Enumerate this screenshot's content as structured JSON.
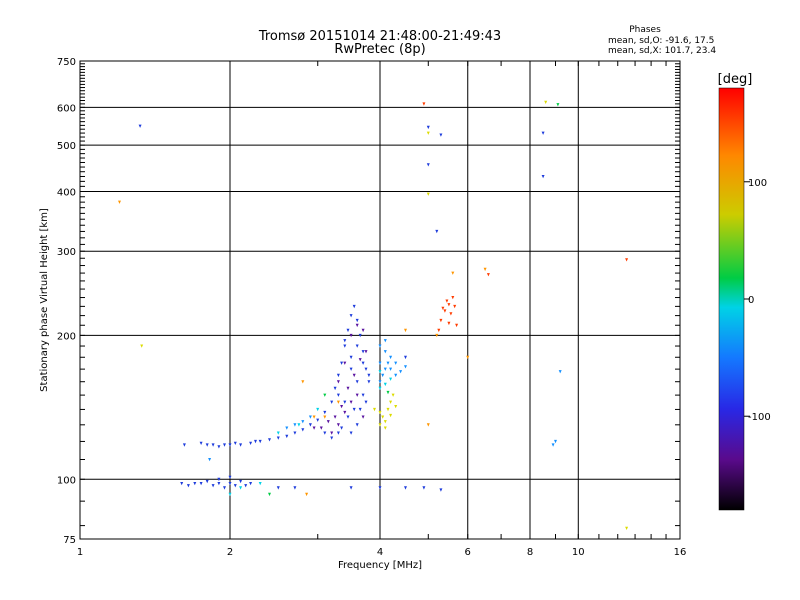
{
  "chart_data": {
    "type": "scatter",
    "title": "Tromsø 20151014 21:48:00-21:49:43",
    "subtitle": "RwPretec (8p)",
    "xlabel": "Frequency [MHz]",
    "ylabel": "Stationary phase Virtual Height [km]",
    "x_scale": "log",
    "y_scale": "log",
    "xlim": [
      1,
      16
    ],
    "ylim": [
      75,
      750
    ],
    "x_ticks": [
      1,
      2,
      4,
      6,
      8,
      10,
      16
    ],
    "y_ticks": [
      75,
      100,
      200,
      300,
      400,
      500,
      600,
      750
    ],
    "grid": true,
    "phase_info": {
      "heading": "Phases",
      "line_o": "mean, sd,O: -91.6, 17.5",
      "line_x": "mean, sd,X: 101.7, 23.4"
    },
    "colorbar": {
      "unit": "[deg]",
      "ticks": [
        100,
        0,
        -100
      ],
      "range": [
        -180,
        180
      ],
      "stops": [
        "#000000",
        "#5a0a8c",
        "#2828e6",
        "#1478ff",
        "#00d2e6",
        "#00cc44",
        "#cccc00",
        "#ff8800",
        "#ff0000"
      ]
    },
    "series": [
      {
        "color": "#1e3cdc",
        "points": [
          [
            1.6,
            98
          ],
          [
            1.65,
            97
          ],
          [
            1.7,
            98
          ],
          [
            1.8,
            99
          ],
          [
            1.85,
            97
          ],
          [
            1.9,
            98
          ],
          [
            1.95,
            96
          ],
          [
            2.0,
            98
          ],
          [
            2.05,
            97
          ],
          [
            2.1,
            99
          ],
          [
            2.15,
            97
          ],
          [
            2.2,
            98
          ],
          [
            1.62,
            118
          ],
          [
            1.75,
            119
          ],
          [
            1.8,
            118
          ],
          [
            1.85,
            118
          ],
          [
            1.9,
            117
          ],
          [
            1.95,
            118
          ],
          [
            2.0,
            118
          ],
          [
            2.05,
            119
          ],
          [
            2.1,
            118
          ],
          [
            2.2,
            119
          ],
          [
            2.25,
            120
          ],
          [
            2.3,
            120
          ],
          [
            2.4,
            121
          ],
          [
            2.5,
            122
          ],
          [
            2.6,
            123
          ],
          [
            2.7,
            125
          ],
          [
            2.8,
            127
          ],
          [
            2.9,
            130
          ],
          [
            3.0,
            133
          ],
          [
            3.1,
            138
          ],
          [
            3.2,
            145
          ],
          [
            3.25,
            155
          ],
          [
            3.3,
            165
          ],
          [
            3.35,
            175
          ],
          [
            3.4,
            190
          ],
          [
            3.45,
            205
          ],
          [
            3.5,
            220
          ],
          [
            3.55,
            230
          ],
          [
            3.6,
            215
          ],
          [
            3.65,
            200
          ],
          [
            3.7,
            185
          ],
          [
            3.75,
            170
          ],
          [
            3.8,
            160
          ],
          [
            3.3,
            150
          ],
          [
            3.4,
            145
          ],
          [
            3.5,
            170
          ],
          [
            3.6,
            160
          ],
          [
            3.7,
            150
          ],
          [
            3.45,
            135
          ],
          [
            3.55,
            140
          ],
          [
            3.65,
            140
          ],
          [
            3.75,
            145
          ],
          [
            3.35,
            128
          ],
          [
            3.5,
            125
          ],
          [
            3.6,
            130
          ],
          [
            3.1,
            125
          ],
          [
            3.2,
            122
          ],
          [
            3.3,
            125
          ],
          [
            3.4,
            195
          ],
          [
            3.5,
            180
          ],
          [
            3.6,
            190
          ],
          [
            3.7,
            175
          ],
          [
            3.8,
            165
          ],
          [
            1.75,
            98
          ],
          [
            1.9,
            100
          ],
          [
            2.0,
            101
          ],
          [
            3.5,
            96
          ],
          [
            4.0,
            96
          ],
          [
            4.5,
            96
          ],
          [
            4.9,
            96
          ],
          [
            5.3,
            95
          ],
          [
            8.5,
            530
          ],
          [
            8.5,
            430
          ],
          [
            5.0,
            455
          ],
          [
            5.0,
            545
          ],
          [
            5.3,
            525
          ],
          [
            5.2,
            330
          ],
          [
            1.32,
            548
          ],
          [
            2.5,
            96
          ],
          [
            2.7,
            96
          ],
          [
            4.5,
            180
          ]
        ]
      },
      {
        "color": "#5a14a0",
        "points": [
          [
            3.2,
            125
          ],
          [
            3.3,
            130
          ],
          [
            3.4,
            138
          ],
          [
            3.5,
            145
          ],
          [
            3.6,
            150
          ],
          [
            3.7,
            135
          ],
          [
            3.25,
            135
          ],
          [
            3.35,
            142
          ],
          [
            3.45,
            155
          ],
          [
            3.55,
            165
          ],
          [
            3.65,
            178
          ],
          [
            3.75,
            185
          ],
          [
            3.3,
            160
          ],
          [
            3.4,
            175
          ],
          [
            3.5,
            200
          ],
          [
            3.6,
            210
          ],
          [
            3.7,
            205
          ],
          [
            3.05,
            128
          ],
          [
            3.15,
            132
          ],
          [
            2.95,
            128
          ]
        ]
      },
      {
        "color": "#1490ff",
        "points": [
          [
            4.0,
            160
          ],
          [
            4.05,
            165
          ],
          [
            4.1,
            170
          ],
          [
            4.15,
            175
          ],
          [
            4.2,
            170
          ],
          [
            4.3,
            165
          ],
          [
            4.0,
            175
          ],
          [
            4.1,
            185
          ],
          [
            4.2,
            180
          ],
          [
            4.3,
            175
          ],
          [
            4.4,
            168
          ],
          [
            4.5,
            172
          ],
          [
            4.0,
            190
          ],
          [
            4.1,
            195
          ],
          [
            2.6,
            128
          ],
          [
            2.7,
            130
          ],
          [
            2.8,
            132
          ],
          [
            2.9,
            135
          ],
          [
            1.82,
            110
          ],
          [
            9.0,
            120
          ],
          [
            9.2,
            168
          ],
          [
            8.9,
            118
          ]
        ]
      },
      {
        "color": "#00d2e6",
        "points": [
          [
            4.0,
            155
          ],
          [
            4.1,
            158
          ],
          [
            4.2,
            162
          ],
          [
            2.0,
            93
          ],
          [
            2.1,
            96
          ],
          [
            2.3,
            98
          ],
          [
            2.5,
            125
          ],
          [
            2.75,
            130
          ],
          [
            3.0,
            140
          ],
          [
            4.0,
            168
          ]
        ]
      },
      {
        "color": "#00cc44",
        "points": [
          [
            3.1,
            150
          ],
          [
            4.15,
            152
          ],
          [
            9.1,
            608
          ],
          [
            2.4,
            93
          ]
        ]
      },
      {
        "color": "#dcdc00",
        "points": [
          [
            4.0,
            138
          ],
          [
            4.05,
            135
          ],
          [
            4.1,
            132
          ],
          [
            4.15,
            140
          ],
          [
            4.2,
            145
          ],
          [
            4.0,
            130
          ],
          [
            4.1,
            128
          ],
          [
            4.2,
            136
          ],
          [
            4.3,
            142
          ],
          [
            4.25,
            150
          ],
          [
            3.9,
            140
          ],
          [
            5.0,
            530
          ],
          [
            1.33,
            190
          ],
          [
            5.0,
            395
          ],
          [
            8.6,
            615
          ],
          [
            12.5,
            79
          ]
        ]
      },
      {
        "color": "#ff9600",
        "points": [
          [
            1.2,
            380
          ],
          [
            2.85,
            93
          ],
          [
            2.95,
            135
          ],
          [
            3.1,
            135
          ],
          [
            3.3,
            145
          ],
          [
            4.5,
            205
          ],
          [
            5.6,
            270
          ],
          [
            6.5,
            275
          ],
          [
            5.2,
            200
          ],
          [
            5.0,
            130
          ],
          [
            6.0,
            180
          ],
          [
            2.8,
            160
          ]
        ]
      },
      {
        "color": "#ff3c00",
        "points": [
          [
            5.3,
            215
          ],
          [
            5.4,
            225
          ],
          [
            5.5,
            232
          ],
          [
            5.6,
            240
          ],
          [
            5.35,
            228
          ],
          [
            5.45,
            236
          ],
          [
            5.55,
            222
          ],
          [
            5.65,
            230
          ],
          [
            5.7,
            210
          ],
          [
            5.25,
            205
          ],
          [
            5.5,
            212
          ],
          [
            4.9,
            610
          ],
          [
            12.5,
            288
          ],
          [
            6.6,
            268
          ]
        ]
      }
    ]
  }
}
